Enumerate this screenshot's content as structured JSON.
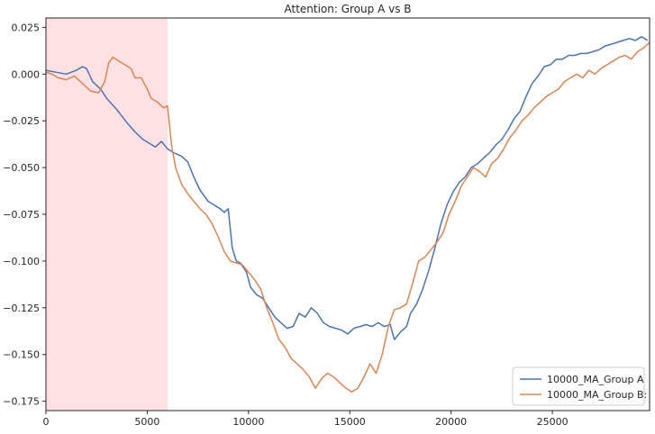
{
  "chart_data": {
    "type": "line",
    "title": "Attention: Group A vs B",
    "xlabel": "",
    "ylabel": "",
    "xlim": [
      0,
      29800
    ],
    "ylim": [
      -0.18,
      0.03
    ],
    "x_ticks": [
      0,
      5000,
      10000,
      15000,
      20000,
      25000
    ],
    "x_tick_labels": [
      "0",
      "5000",
      "10000",
      "15000",
      "20000",
      "25000"
    ],
    "y_ticks": [
      0.025,
      0.0,
      -0.025,
      -0.05,
      -0.075,
      -0.1,
      -0.125,
      -0.15,
      -0.175
    ],
    "y_tick_labels": [
      "0.025",
      "0.000",
      "−0.025",
      "−0.050",
      "−0.075",
      "−0.100",
      "−0.125",
      "−0.150",
      "−0.175"
    ],
    "grid": false,
    "legend_position": "bottom-right",
    "shaded_region": {
      "x_start": 0,
      "x_end": 6000,
      "color": "#ffe0e3"
    },
    "series": [
      {
        "name": "10000_MA_Group A",
        "color": "#4c72b0",
        "points": [
          [
            0,
            0.002
          ],
          [
            500,
            0.001
          ],
          [
            1000,
            0.0
          ],
          [
            1500,
            0.002
          ],
          [
            1800,
            0.004
          ],
          [
            2000,
            0.003
          ],
          [
            2300,
            -0.004
          ],
          [
            2700,
            -0.008
          ],
          [
            3000,
            -0.013
          ],
          [
            3500,
            -0.019
          ],
          [
            4000,
            -0.026
          ],
          [
            4400,
            -0.031
          ],
          [
            4800,
            -0.035
          ],
          [
            5100,
            -0.037
          ],
          [
            5400,
            -0.039
          ],
          [
            5700,
            -0.036
          ],
          [
            6000,
            -0.04
          ],
          [
            6300,
            -0.042
          ],
          [
            6700,
            -0.044
          ],
          [
            7000,
            -0.047
          ],
          [
            7300,
            -0.055
          ],
          [
            7600,
            -0.062
          ],
          [
            8000,
            -0.068
          ],
          [
            8300,
            -0.07
          ],
          [
            8600,
            -0.072
          ],
          [
            8800,
            -0.074
          ],
          [
            9000,
            -0.072
          ],
          [
            9200,
            -0.093
          ],
          [
            9400,
            -0.1
          ],
          [
            9600,
            -0.101
          ],
          [
            9900,
            -0.106
          ],
          [
            10100,
            -0.114
          ],
          [
            10400,
            -0.118
          ],
          [
            10700,
            -0.12
          ],
          [
            11000,
            -0.125
          ],
          [
            11300,
            -0.13
          ],
          [
            11600,
            -0.133
          ],
          [
            11900,
            -0.136
          ],
          [
            12200,
            -0.135
          ],
          [
            12500,
            -0.128
          ],
          [
            12800,
            -0.13
          ],
          [
            13100,
            -0.125
          ],
          [
            13400,
            -0.128
          ],
          [
            13700,
            -0.133
          ],
          [
            14000,
            -0.135
          ],
          [
            14300,
            -0.136
          ],
          [
            14600,
            -0.137
          ],
          [
            14900,
            -0.139
          ],
          [
            15200,
            -0.136
          ],
          [
            15500,
            -0.135
          ],
          [
            15800,
            -0.134
          ],
          [
            16100,
            -0.135
          ],
          [
            16400,
            -0.133
          ],
          [
            16700,
            -0.135
          ],
          [
            17000,
            -0.134
          ],
          [
            17200,
            -0.142
          ],
          [
            17500,
            -0.138
          ],
          [
            17800,
            -0.135
          ],
          [
            18000,
            -0.128
          ],
          [
            18300,
            -0.123
          ],
          [
            18600,
            -0.115
          ],
          [
            18900,
            -0.105
          ],
          [
            19200,
            -0.093
          ],
          [
            19500,
            -0.08
          ],
          [
            19800,
            -0.07
          ],
          [
            20100,
            -0.063
          ],
          [
            20400,
            -0.058
          ],
          [
            20700,
            -0.055
          ],
          [
            21000,
            -0.05
          ],
          [
            21300,
            -0.048
          ],
          [
            21600,
            -0.045
          ],
          [
            21900,
            -0.042
          ],
          [
            22200,
            -0.038
          ],
          [
            22500,
            -0.035
          ],
          [
            22800,
            -0.03
          ],
          [
            23100,
            -0.024
          ],
          [
            23400,
            -0.02
          ],
          [
            23700,
            -0.012
          ],
          [
            24000,
            -0.005
          ],
          [
            24300,
            -0.001
          ],
          [
            24600,
            0.004
          ],
          [
            24900,
            0.005
          ],
          [
            25200,
            0.008
          ],
          [
            25500,
            0.008
          ],
          [
            25800,
            0.01
          ],
          [
            26100,
            0.01
          ],
          [
            26400,
            0.011
          ],
          [
            26700,
            0.011
          ],
          [
            27000,
            0.012
          ],
          [
            27300,
            0.013
          ],
          [
            27600,
            0.015
          ],
          [
            27900,
            0.016
          ],
          [
            28200,
            0.017
          ],
          [
            28500,
            0.018
          ],
          [
            28800,
            0.019
          ],
          [
            29100,
            0.018
          ],
          [
            29400,
            0.02
          ],
          [
            29700,
            0.018
          ]
        ]
      },
      {
        "name": "10000_MA_Group B:",
        "color": "#dd8452",
        "points": [
          [
            0,
            0.001
          ],
          [
            300,
            0.0
          ],
          [
            600,
            -0.002
          ],
          [
            1000,
            -0.003
          ],
          [
            1400,
            -0.001
          ],
          [
            1800,
            -0.005
          ],
          [
            2200,
            -0.009
          ],
          [
            2600,
            -0.01
          ],
          [
            2900,
            -0.004
          ],
          [
            3100,
            0.006
          ],
          [
            3300,
            0.009
          ],
          [
            3600,
            0.007
          ],
          [
            3900,
            0.005
          ],
          [
            4200,
            0.003
          ],
          [
            4400,
            -0.002
          ],
          [
            4700,
            -0.002
          ],
          [
            5000,
            -0.008
          ],
          [
            5200,
            -0.013
          ],
          [
            5500,
            -0.015
          ],
          [
            5800,
            -0.018
          ],
          [
            6000,
            -0.017
          ],
          [
            6200,
            -0.038
          ],
          [
            6400,
            -0.05
          ],
          [
            6700,
            -0.059
          ],
          [
            7000,
            -0.064
          ],
          [
            7300,
            -0.068
          ],
          [
            7600,
            -0.072
          ],
          [
            7900,
            -0.075
          ],
          [
            8200,
            -0.08
          ],
          [
            8500,
            -0.087
          ],
          [
            8800,
            -0.095
          ],
          [
            9100,
            -0.1
          ],
          [
            9400,
            -0.101
          ],
          [
            9700,
            -0.102
          ],
          [
            10000,
            -0.106
          ],
          [
            10300,
            -0.11
          ],
          [
            10600,
            -0.115
          ],
          [
            10900,
            -0.125
          ],
          [
            11200,
            -0.133
          ],
          [
            11500,
            -0.142
          ],
          [
            11800,
            -0.146
          ],
          [
            12100,
            -0.152
          ],
          [
            12400,
            -0.155
          ],
          [
            12700,
            -0.158
          ],
          [
            13000,
            -0.162
          ],
          [
            13300,
            -0.168
          ],
          [
            13600,
            -0.163
          ],
          [
            13900,
            -0.16
          ],
          [
            14200,
            -0.162
          ],
          [
            14500,
            -0.165
          ],
          [
            14800,
            -0.168
          ],
          [
            15100,
            -0.17
          ],
          [
            15400,
            -0.168
          ],
          [
            15700,
            -0.162
          ],
          [
            16000,
            -0.155
          ],
          [
            16300,
            -0.16
          ],
          [
            16600,
            -0.15
          ],
          [
            16900,
            -0.135
          ],
          [
            17200,
            -0.126
          ],
          [
            17500,
            -0.125
          ],
          [
            17800,
            -0.123
          ],
          [
            18100,
            -0.112
          ],
          [
            18400,
            -0.1
          ],
          [
            18700,
            -0.098
          ],
          [
            19000,
            -0.094
          ],
          [
            19300,
            -0.09
          ],
          [
            19600,
            -0.085
          ],
          [
            19900,
            -0.075
          ],
          [
            20200,
            -0.068
          ],
          [
            20500,
            -0.06
          ],
          [
            20800,
            -0.055
          ],
          [
            21100,
            -0.05
          ],
          [
            21400,
            -0.052
          ],
          [
            21700,
            -0.055
          ],
          [
            22000,
            -0.048
          ],
          [
            22300,
            -0.045
          ],
          [
            22600,
            -0.04
          ],
          [
            22900,
            -0.034
          ],
          [
            23200,
            -0.03
          ],
          [
            23500,
            -0.025
          ],
          [
            23800,
            -0.022
          ],
          [
            24100,
            -0.018
          ],
          [
            24400,
            -0.015
          ],
          [
            24700,
            -0.012
          ],
          [
            25000,
            -0.01
          ],
          [
            25300,
            -0.008
          ],
          [
            25600,
            -0.004
          ],
          [
            25900,
            -0.002
          ],
          [
            26200,
            0.0
          ],
          [
            26500,
            -0.002
          ],
          [
            26800,
            0.002
          ],
          [
            27100,
            0.0
          ],
          [
            27400,
            0.003
          ],
          [
            27700,
            0.005
          ],
          [
            28000,
            0.007
          ],
          [
            28300,
            0.009
          ],
          [
            28600,
            0.01
          ],
          [
            28900,
            0.008
          ],
          [
            29200,
            0.012
          ],
          [
            29500,
            0.014
          ],
          [
            29800,
            0.017
          ]
        ]
      }
    ]
  }
}
